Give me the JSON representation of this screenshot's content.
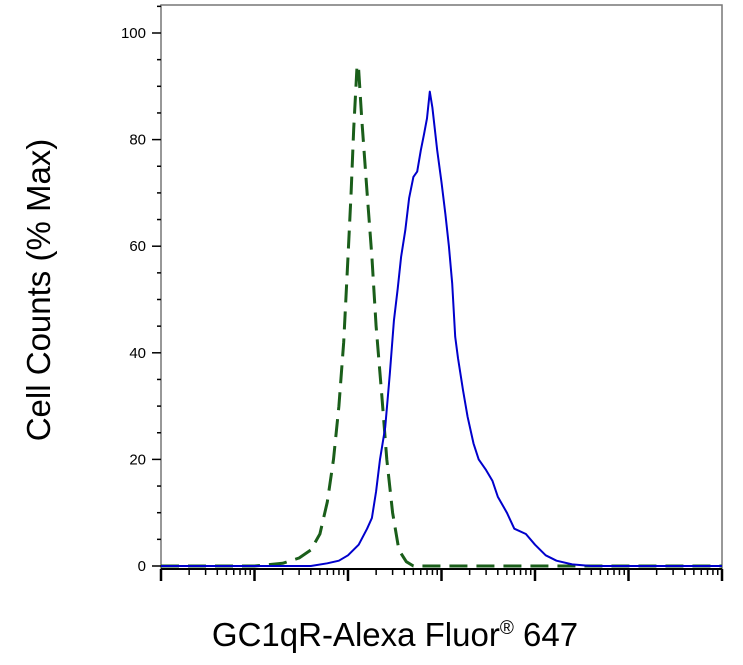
{
  "chart_data": {
    "type": "line",
    "title": "",
    "xlabel": "GC1qR-Alexa Fluor",
    "xlabel_registered": "®",
    "xlabel_suffix": " 647",
    "ylabel": "Cell Counts (% Max)",
    "xscale": "log",
    "xlim": [
      10,
      10000000
    ],
    "ylim": [
      0,
      105
    ],
    "yticks": [
      0,
      20,
      40,
      60,
      80,
      100
    ],
    "ytick_labels": [
      "0",
      "20",
      "40",
      "60",
      "80",
      "100"
    ],
    "grid": false,
    "legend": "none",
    "series": [
      {
        "style": "dashed",
        "color": "#1a5e1a",
        "points": [
          [
            10,
            0
          ],
          [
            100,
            0
          ],
          [
            200,
            0.5
          ],
          [
            300,
            1.5
          ],
          [
            400,
            3
          ],
          [
            500,
            6
          ],
          [
            600,
            12
          ],
          [
            700,
            20
          ],
          [
            800,
            30
          ],
          [
            900,
            42
          ],
          [
            1000,
            58
          ],
          [
            1080,
            70
          ],
          [
            1150,
            82
          ],
          [
            1200,
            88
          ],
          [
            1250,
            94
          ],
          [
            1300,
            93
          ],
          [
            1400,
            84
          ],
          [
            1600,
            70
          ],
          [
            1800,
            58
          ],
          [
            2000,
            45
          ],
          [
            2300,
            32
          ],
          [
            2600,
            20
          ],
          [
            3000,
            10
          ],
          [
            3500,
            3
          ],
          [
            4200,
            0.8
          ],
          [
            5000,
            0
          ],
          [
            100000,
            0
          ],
          [
            10000000,
            0
          ]
        ]
      },
      {
        "style": "solid",
        "color": "#0000cc",
        "points": [
          [
            10,
            0
          ],
          [
            200,
            0
          ],
          [
            400,
            0
          ],
          [
            600,
            0.5
          ],
          [
            800,
            1
          ],
          [
            1000,
            2
          ],
          [
            1300,
            4
          ],
          [
            1600,
            7
          ],
          [
            1800,
            9
          ],
          [
            2000,
            14
          ],
          [
            2200,
            20
          ],
          [
            2500,
            26
          ],
          [
            2800,
            36
          ],
          [
            3100,
            46
          ],
          [
            3400,
            52
          ],
          [
            3700,
            58
          ],
          [
            4100,
            63
          ],
          [
            4500,
            69
          ],
          [
            5000,
            73
          ],
          [
            5500,
            74
          ],
          [
            6000,
            78
          ],
          [
            6500,
            81
          ],
          [
            7000,
            84
          ],
          [
            7500,
            89
          ],
          [
            8000,
            86
          ],
          [
            9000,
            78
          ],
          [
            10000,
            72
          ],
          [
            11000,
            66
          ],
          [
            12000,
            60
          ],
          [
            13000,
            53
          ],
          [
            14000,
            43
          ],
          [
            15000,
            39
          ],
          [
            17000,
            33
          ],
          [
            19000,
            28
          ],
          [
            22000,
            23
          ],
          [
            25000,
            20
          ],
          [
            30000,
            18
          ],
          [
            35000,
            16
          ],
          [
            40000,
            13
          ],
          [
            50000,
            10
          ],
          [
            60000,
            7
          ],
          [
            80000,
            6
          ],
          [
            100000,
            4
          ],
          [
            130000,
            2
          ],
          [
            170000,
            1
          ],
          [
            250000,
            0.3
          ],
          [
            400000,
            0
          ],
          [
            10000000,
            0
          ]
        ]
      }
    ]
  }
}
